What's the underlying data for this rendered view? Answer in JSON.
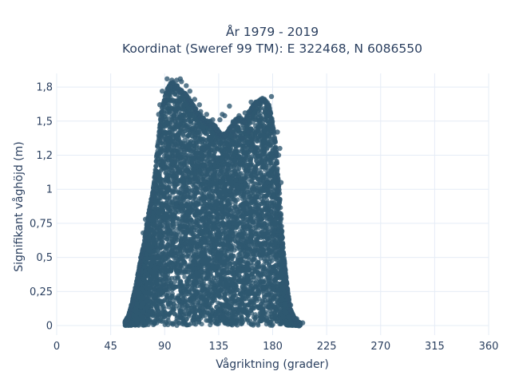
{
  "chart_data": {
    "type": "scatter",
    "title_lines": [
      "År 1979 - 2019",
      "Koordinat (Sweref 99 TM): E 322468, N 6086550"
    ],
    "xlabel": "Vågriktning (grader)",
    "ylabel": "Signifikant våghöjd (m)",
    "xlim": [
      0,
      360
    ],
    "ylim": [
      -0.07,
      1.85
    ],
    "x_ticks": [
      0,
      45,
      90,
      135,
      180,
      225,
      270,
      315,
      360
    ],
    "x_tick_labels": [
      "0",
      "45",
      "90",
      "135",
      "180",
      "225",
      "270",
      "315",
      "360"
    ],
    "y_ticks": [
      0,
      0.25,
      0.5,
      0.75,
      1,
      1.25,
      1.5,
      1.75
    ],
    "y_tick_labels": [
      "0",
      "0,25",
      "0,5",
      "0,75",
      "1",
      "1,2",
      "1,5",
      "1,8"
    ],
    "grid": true,
    "marker_color": "#2f5870",
    "envelope": {
      "x": [
        57,
        60,
        63,
        66,
        69,
        72,
        75,
        78,
        81,
        84,
        87,
        90,
        93,
        96,
        99,
        102,
        105,
        108,
        111,
        114,
        117,
        120,
        123,
        126,
        129,
        132,
        135,
        138,
        141,
        144,
        147,
        150,
        153,
        156,
        159,
        162,
        165,
        168,
        171,
        174,
        177,
        180,
        183,
        186,
        189,
        192,
        195,
        198,
        201,
        203
      ],
      "y_max": [
        0.03,
        0.08,
        0.18,
        0.3,
        0.45,
        0.58,
        0.75,
        0.9,
        1.05,
        1.32,
        1.57,
        1.68,
        1.76,
        1.79,
        1.78,
        1.74,
        1.72,
        1.7,
        1.66,
        1.62,
        1.58,
        1.55,
        1.52,
        1.5,
        1.49,
        1.47,
        1.43,
        1.4,
        1.42,
        1.45,
        1.5,
        1.52,
        1.53,
        1.5,
        1.55,
        1.6,
        1.63,
        1.65,
        1.67,
        1.66,
        1.62,
        1.5,
        1.3,
        0.95,
        0.55,
        0.3,
        0.12,
        0.06,
        0.03,
        0.02
      ]
    },
    "outlier_points": [
      {
        "x": 92,
        "y": 1.81
      },
      {
        "x": 96,
        "y": 1.8
      },
      {
        "x": 103,
        "y": 1.81
      },
      {
        "x": 104,
        "y": 1.79
      },
      {
        "x": 100,
        "y": 1.8
      },
      {
        "x": 111,
        "y": 1.72
      },
      {
        "x": 88,
        "y": 1.72
      },
      {
        "x": 119,
        "y": 1.62
      },
      {
        "x": 138,
        "y": 1.55
      },
      {
        "x": 140,
        "y": 1.54
      },
      {
        "x": 144,
        "y": 1.61
      },
      {
        "x": 152,
        "y": 1.54
      },
      {
        "x": 162,
        "y": 1.64
      },
      {
        "x": 166,
        "y": 1.64
      },
      {
        "x": 170,
        "y": 1.66
      },
      {
        "x": 179,
        "y": 1.68
      },
      {
        "x": 176,
        "y": 1.62
      },
      {
        "x": 136,
        "y": 1.51
      },
      {
        "x": 74,
        "y": 0.78
      },
      {
        "x": 72,
        "y": 0.68
      },
      {
        "x": 70,
        "y": 0.5
      },
      {
        "x": 63,
        "y": 0.16
      },
      {
        "x": 57,
        "y": 0.03
      },
      {
        "x": 60,
        "y": 0.07
      },
      {
        "x": 120,
        "y": 1.57
      },
      {
        "x": 130,
        "y": 1.51
      },
      {
        "x": 148,
        "y": 1.4
      },
      {
        "x": 155,
        "y": 1.38
      },
      {
        "x": 185,
        "y": 1.25
      },
      {
        "x": 187,
        "y": 1.05
      },
      {
        "x": 190,
        "y": 0.4
      },
      {
        "x": 195,
        "y": 0.15
      },
      {
        "x": 200,
        "y": 0.05
      },
      {
        "x": 205,
        "y": 0.02
      },
      {
        "x": 186,
        "y": 1.3
      },
      {
        "x": 184,
        "y": 1.42
      },
      {
        "x": 157,
        "y": 1.56
      },
      {
        "x": 160,
        "y": 1.42
      },
      {
        "x": 128,
        "y": 1.5
      },
      {
        "x": 125,
        "y": 1.55
      },
      {
        "x": 115,
        "y": 1.66
      },
      {
        "x": 108,
        "y": 1.76
      },
      {
        "x": 85,
        "y": 1.55
      },
      {
        "x": 86,
        "y": 1.62
      }
    ]
  }
}
